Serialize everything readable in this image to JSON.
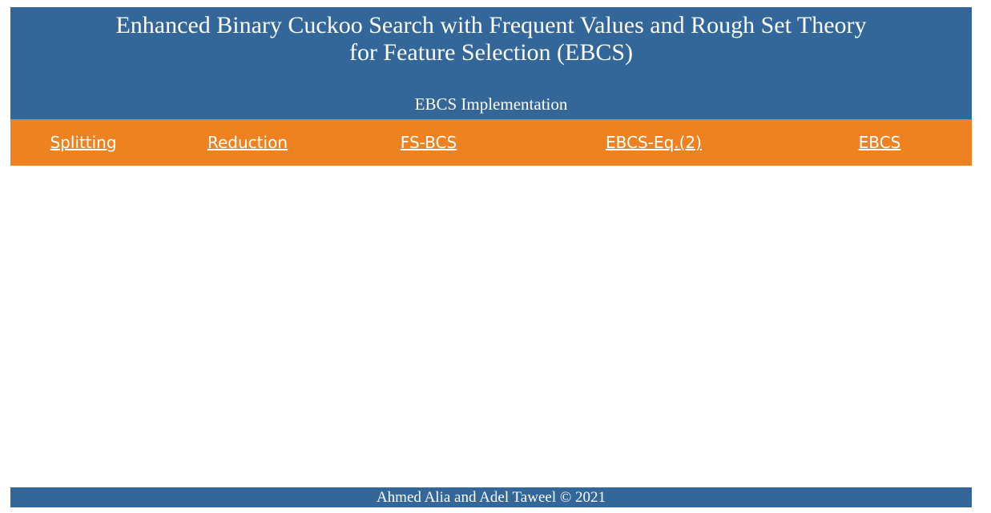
{
  "header": {
    "title_line1": "Enhanced Binary Cuckoo Search with Frequent Values and Rough Set Theory",
    "title_line2": "for Feature Selection (EBCS)",
    "subtitle": "EBCS Implementation"
  },
  "nav": {
    "items": [
      {
        "label": "Splitting"
      },
      {
        "label": "Reduction"
      },
      {
        "label": "FS-BCS"
      },
      {
        "label": "EBCS-Eq.(2)"
      },
      {
        "label": "EBCS"
      }
    ]
  },
  "footer": {
    "text": "Ahmed Alia and Adel Taweel © 2021"
  },
  "colors": {
    "header_bg": "#336699",
    "nav_bg": "#ee8220",
    "text": "#ffffff"
  }
}
